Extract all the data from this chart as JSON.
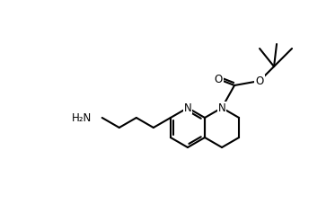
{
  "background_color": "#ffffff",
  "line_color": "#000000",
  "line_width": 1.5,
  "font_size": 8.5,
  "figsize": [
    3.74,
    2.28
  ],
  "dpi": 100,
  "note": "8-N-BOC-5,6,7,8-tetrahydro-1,8-naphthyridine-2-butylamine structure"
}
